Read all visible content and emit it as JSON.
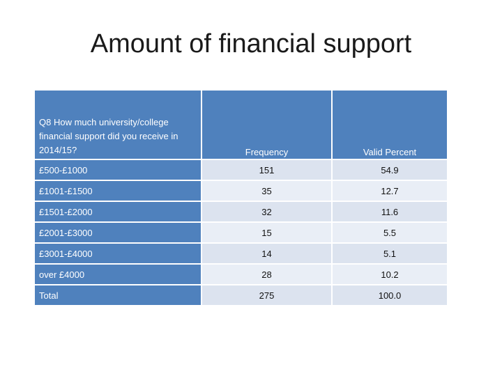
{
  "title": "Amount of financial support",
  "table": {
    "question": "Q8 How much university/college financial support did you receive in 2014/15?",
    "col_frequency": "Frequency",
    "col_valid_percent": "Valid Percent",
    "rows": [
      {
        "label": "£500-£1000",
        "frequency": "151",
        "valid_percent": "54.9"
      },
      {
        "label": "£1001-£1500",
        "frequency": "35",
        "valid_percent": "12.7"
      },
      {
        "label": "£1501-£2000",
        "frequency": "32",
        "valid_percent": "11.6"
      },
      {
        "label": "£2001-£3000",
        "frequency": "15",
        "valid_percent": "5.5"
      },
      {
        "label": "£3001-£4000",
        "frequency": "14",
        "valid_percent": "5.1"
      },
      {
        "label": "over £4000",
        "frequency": "28",
        "valid_percent": "10.2"
      },
      {
        "label": "Total",
        "frequency": "275",
        "valid_percent": "100.0"
      }
    ]
  }
}
